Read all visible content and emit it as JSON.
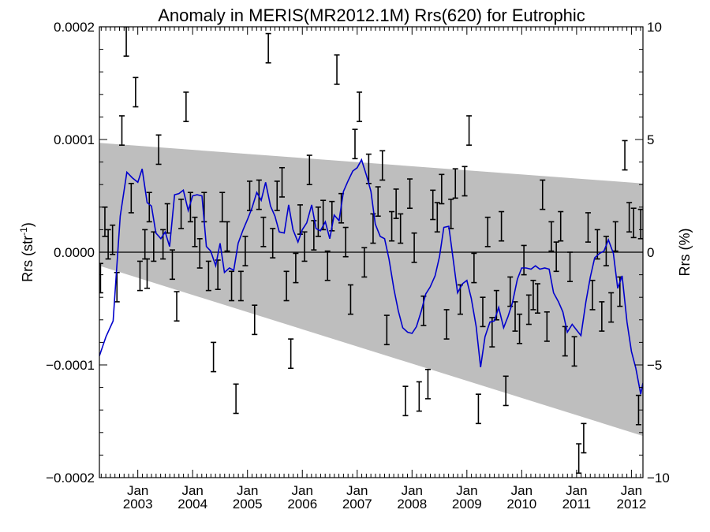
{
  "chart_data": {
    "type": "line",
    "title": "Anomaly in MERIS(MR2012.1M) Rrs(620) for Eutrophic",
    "ylabel": "Rrs (str",
    "ylabel_sup": "-1",
    "ylabel_close": ")",
    "y2label": "Rrs (%)",
    "xlim": [
      2002.3,
      2012.21
    ],
    "ylim": [
      -0.0002,
      0.0002
    ],
    "y2lim": [
      -10,
      10
    ],
    "x_ticks": [
      {
        "x": 2003.0,
        "top": "Jan",
        "bottom": "2003"
      },
      {
        "x": 2004.0,
        "top": "Jan",
        "bottom": "2004"
      },
      {
        "x": 2005.0,
        "top": "Jan",
        "bottom": "2005"
      },
      {
        "x": 2006.0,
        "top": "Jan",
        "bottom": "2006"
      },
      {
        "x": 2007.0,
        "top": "Jan",
        "bottom": "2007"
      },
      {
        "x": 2008.0,
        "top": "Jan",
        "bottom": "2008"
      },
      {
        "x": 2009.0,
        "top": "Jan",
        "bottom": "2009"
      },
      {
        "x": 2010.0,
        "top": "Jan",
        "bottom": "2010"
      },
      {
        "x": 2011.0,
        "top": "Jan",
        "bottom": "2011"
      },
      {
        "x": 2012.0,
        "top": "Jan",
        "bottom": "2012"
      }
    ],
    "y_ticks": [
      {
        "v": 0.0002,
        "label": "0.0002"
      },
      {
        "v": 0.0001,
        "label": "0.0001"
      },
      {
        "v": 0.0,
        "label": "0.0000"
      },
      {
        "v": -0.0001,
        "label": "−0.0001"
      },
      {
        "v": -0.0002,
        "label": "−0.0002"
      }
    ],
    "y2_ticks": [
      {
        "v": 10,
        "label": "10"
      },
      {
        "v": 5,
        "label": "5"
      },
      {
        "v": 0,
        "label": "0"
      },
      {
        "v": -5,
        "label": "−5"
      },
      {
        "v": -10,
        "label": "−10"
      }
    ],
    "uncertainty_band": {
      "x": [
        2002.3,
        2012.21
      ],
      "upper": [
        9.7e-05,
        6.1e-05
      ],
      "lower": [
        -1.2e-05,
        -0.000163
      ],
      "color": "#bebebe"
    },
    "zero_line": 0,
    "series": [
      {
        "kind": "smoothed",
        "color": "#0000cc",
        "x": [
          2002.3,
          2002.42,
          2002.55,
          2002.68,
          2002.8,
          2002.9,
          2003.0,
          2003.08,
          2003.17,
          2003.25,
          2003.33,
          2003.42,
          2003.5,
          2003.58,
          2003.67,
          2003.75,
          2003.83,
          2003.92,
          2004.0,
          2004.08,
          2004.17,
          2004.25,
          2004.33,
          2004.42,
          2004.5,
          2004.58,
          2004.67,
          2004.75,
          2004.83,
          2004.92,
          2005.0,
          2005.08,
          2005.17,
          2005.25,
          2005.33,
          2005.42,
          2005.5,
          2005.58,
          2005.67,
          2005.75,
          2005.83,
          2005.92,
          2006.0,
          2006.08,
          2006.17,
          2006.25,
          2006.33,
          2006.42,
          2006.5,
          2006.58,
          2006.67,
          2006.75,
          2006.83,
          2006.92,
          2007.0,
          2007.08,
          2007.17,
          2007.25,
          2007.33,
          2007.42,
          2007.5,
          2007.58,
          2007.67,
          2007.75,
          2007.83,
          2007.92,
          2008.0,
          2008.08,
          2008.17,
          2008.25,
          2008.33,
          2008.42,
          2008.5,
          2008.58,
          2008.67,
          2008.75,
          2008.83,
          2008.92,
          2009.0,
          2009.08,
          2009.17,
          2009.25,
          2009.33,
          2009.42,
          2009.5,
          2009.58,
          2009.67,
          2009.75,
          2009.83,
          2009.92,
          2010.0,
          2010.08,
          2010.17,
          2010.25,
          2010.33,
          2010.42,
          2010.5,
          2010.58,
          2010.67,
          2010.75,
          2010.83,
          2010.92,
          2011.0,
          2011.08,
          2011.17,
          2011.25,
          2011.33,
          2011.42,
          2011.5,
          2011.58,
          2011.67,
          2011.75,
          2011.83,
          2011.92,
          2012.0,
          2012.08,
          2012.17,
          2012.21
        ],
        "y": [
          -9.2e-05,
          -7.5e-05,
          -6.1e-05,
          3.2e-05,
          7.1e-05,
          6.6e-05,
          6.2e-05,
          7.4e-05,
          4.4e-05,
          4.1e-05,
          1.7e-05,
          1.2e-05,
          1.8e-05,
          5e-06,
          5.1e-05,
          5.2e-05,
          5.5e-05,
          3.7e-05,
          5e-05,
          5.1e-05,
          5e-05,
          5e-06,
          1e-06,
          -1.2e-05,
          8e-06,
          -1.8e-05,
          -1.4e-05,
          -1.6e-05,
          8e-06,
          2e-05,
          2.9e-05,
          3.9e-05,
          5.3e-05,
          4.6e-05,
          6.2e-05,
          4.1e-05,
          3.2e-05,
          1.8e-05,
          1.7e-05,
          4.2e-05,
          2e-05,
          9e-06,
          2e-05,
          2.6e-05,
          4.2e-05,
          2.1e-05,
          1.9e-05,
          2.7e-05,
          1.2e-05,
          3.3e-05,
          2.8e-05,
          5.4e-05,
          6.3e-05,
          7.2e-05,
          7.5e-05,
          8.2e-05,
          6.8e-05,
          5.4e-05,
          2.5e-05,
          1.4e-05,
          1.2e-05,
          -6e-06,
          -3.3e-05,
          -5.2e-05,
          -6.7e-05,
          -7.1e-05,
          -7.2e-05,
          -6.6e-05,
          -5.2e-05,
          -3.7e-05,
          -3.1e-05,
          -2.1e-05,
          -4e-06,
          2.2e-05,
          2.3e-05,
          -6e-06,
          -3.6e-05,
          -2.8e-05,
          -2.5e-05,
          -4.1e-05,
          -6.6e-05,
          -0.000102,
          -7.5e-05,
          -6.2e-05,
          -6.1e-05,
          -4.9e-05,
          -6.7e-05,
          -5.7e-05,
          -4.5e-05,
          -2.4e-05,
          -1.4e-05,
          -1.4e-05,
          -1.5e-05,
          -1.2e-05,
          -1.5e-05,
          -1.4e-05,
          -1.5e-05,
          -3.6e-05,
          -4.4e-05,
          -5.3e-05,
          -7.1e-05,
          -6.4e-05,
          -6.9e-05,
          -7.4e-05,
          -4.4e-05,
          -2.2e-05,
          -5e-06,
          -1e-06,
          1e-06,
          1.1e-05,
          -1e-06,
          -3.2e-05,
          -2.1e-05,
          -6.2e-05,
          -8.8e-05,
          -0.000103,
          -0.000126,
          -0.000116
        ]
      },
      {
        "kind": "monthly_errorbars",
        "color": "#000000",
        "x": [
          2002.32,
          2002.4,
          2002.46,
          2002.54,
          2002.62,
          2002.71,
          2002.79,
          2002.88,
          2002.96,
          2003.04,
          2003.13,
          2003.17,
          2003.21,
          2003.29,
          2003.38,
          2003.46,
          2003.54,
          2003.63,
          2003.71,
          2003.79,
          2003.88,
          2003.96,
          2004.04,
          2004.13,
          2004.21,
          2004.29,
          2004.38,
          2004.46,
          2004.54,
          2004.63,
          2004.71,
          2004.79,
          2004.88,
          2004.96,
          2005.04,
          2005.13,
          2005.21,
          2005.29,
          2005.38,
          2005.46,
          2005.54,
          2005.63,
          2005.71,
          2005.79,
          2005.88,
          2005.96,
          2006.04,
          2006.13,
          2006.21,
          2006.29,
          2006.38,
          2006.46,
          2006.54,
          2006.63,
          2006.71,
          2006.79,
          2006.88,
          2006.96,
          2007.04,
          2007.13,
          2007.21,
          2007.29,
          2007.38,
          2007.46,
          2007.54,
          2007.63,
          2007.71,
          2007.79,
          2007.88,
          2007.96,
          2008.04,
          2008.13,
          2008.21,
          2008.29,
          2008.38,
          2008.46,
          2008.54,
          2008.63,
          2008.71,
          2008.79,
          2008.88,
          2008.96,
          2009.04,
          2009.13,
          2009.21,
          2009.29,
          2009.38,
          2009.46,
          2009.54,
          2009.63,
          2009.71,
          2009.79,
          2009.88,
          2009.96,
          2010.04,
          2010.13,
          2010.21,
          2010.29,
          2010.38,
          2010.46,
          2010.54,
          2010.63,
          2010.71,
          2010.79,
          2010.88,
          2010.96,
          2011.04,
          2011.13,
          2011.21,
          2011.29,
          2011.38,
          2011.46,
          2011.54,
          2011.63,
          2011.71,
          2011.79,
          2011.88,
          2011.96,
          2012.04,
          2012.13,
          2012.17
        ],
        "y": [
          -2.3e-05,
          2.7e-05,
          7e-06,
          1.1e-05,
          -3.1e-05,
          0.000108,
          0.000187,
          4.8e-05,
          0.000142,
          -2.1e-05,
          7e-06,
          -1.9e-05,
          4e-05,
          5e-06,
          9.1e-05,
          7e-06,
          3e-05,
          -1.1e-05,
          -4.8e-05,
          3.4e-05,
          0.000129,
          4e-05,
          1.8e-05,
          -1e-06,
          4e-05,
          -2.1e-05,
          -9.3e-05,
          -2e-05,
          4e-05,
          1.4e-05,
          -3e-05,
          -0.00013,
          -3e-05,
          1e-06,
          5e-05,
          -6e-05,
          5.1e-05,
          1.8e-05,
          0.000181,
          8e-06,
          5e-05,
          6.2e-05,
          -3e-05,
          -9e-05,
          -1.4e-05,
          2.9e-05,
          5e-06,
          7.3e-05,
          1.5e-05,
          2.7e-05,
          3.3e-05,
          -1.2e-05,
          3.2e-05,
          0.000162,
          3.9e-05,
          9e-06,
          -4.2e-05,
          9.6e-05,
          0.000129,
          -9e-06,
          7.4e-05,
          2.1e-05,
          4.5e-05,
          7.7e-05,
          -6.9e-05,
          2.3e-05,
          4.3e-05,
          2.1e-05,
          -0.000132,
          5.2e-05,
          4e-06,
          -0.000128,
          -5.2e-05,
          -0.000117,
          4.2e-05,
          3.1e-05,
          5.6e-05,
          -6.4e-05,
          3.4e-05,
          6.1e-05,
          -4.2e-05,
          6.3e-05,
          0.000108,
          -1.4e-05,
          -0.000139,
          -5.3e-05,
          1.8e-05,
          -7.1e-05,
          -4.7e-05,
          2.3e-05,
          -0.000123,
          -3.5e-05,
          -5.7e-05,
          -6.8e-05,
          -7e-06,
          -5.1e-05,
          -3.8e-05,
          -4.1e-05,
          5.1e-05,
          -6.6e-05,
          1.4e-05,
          -4e-06,
          2.3e-05,
          -7.9e-05,
          -1.3e-05,
          -8.8e-05,
          -0.000183,
          -0.000165,
          2.2e-05,
          -3.8e-05,
          7e-06,
          -5.7e-05,
          1e-06,
          -4.9e-05,
          1.4e-05,
          -3.5e-05,
          8.6e-05,
          3.1e-05,
          2.6e-05,
          -0.00014,
          2.5e-05
        ]
      }
    ],
    "grid": false,
    "legend": "none"
  }
}
